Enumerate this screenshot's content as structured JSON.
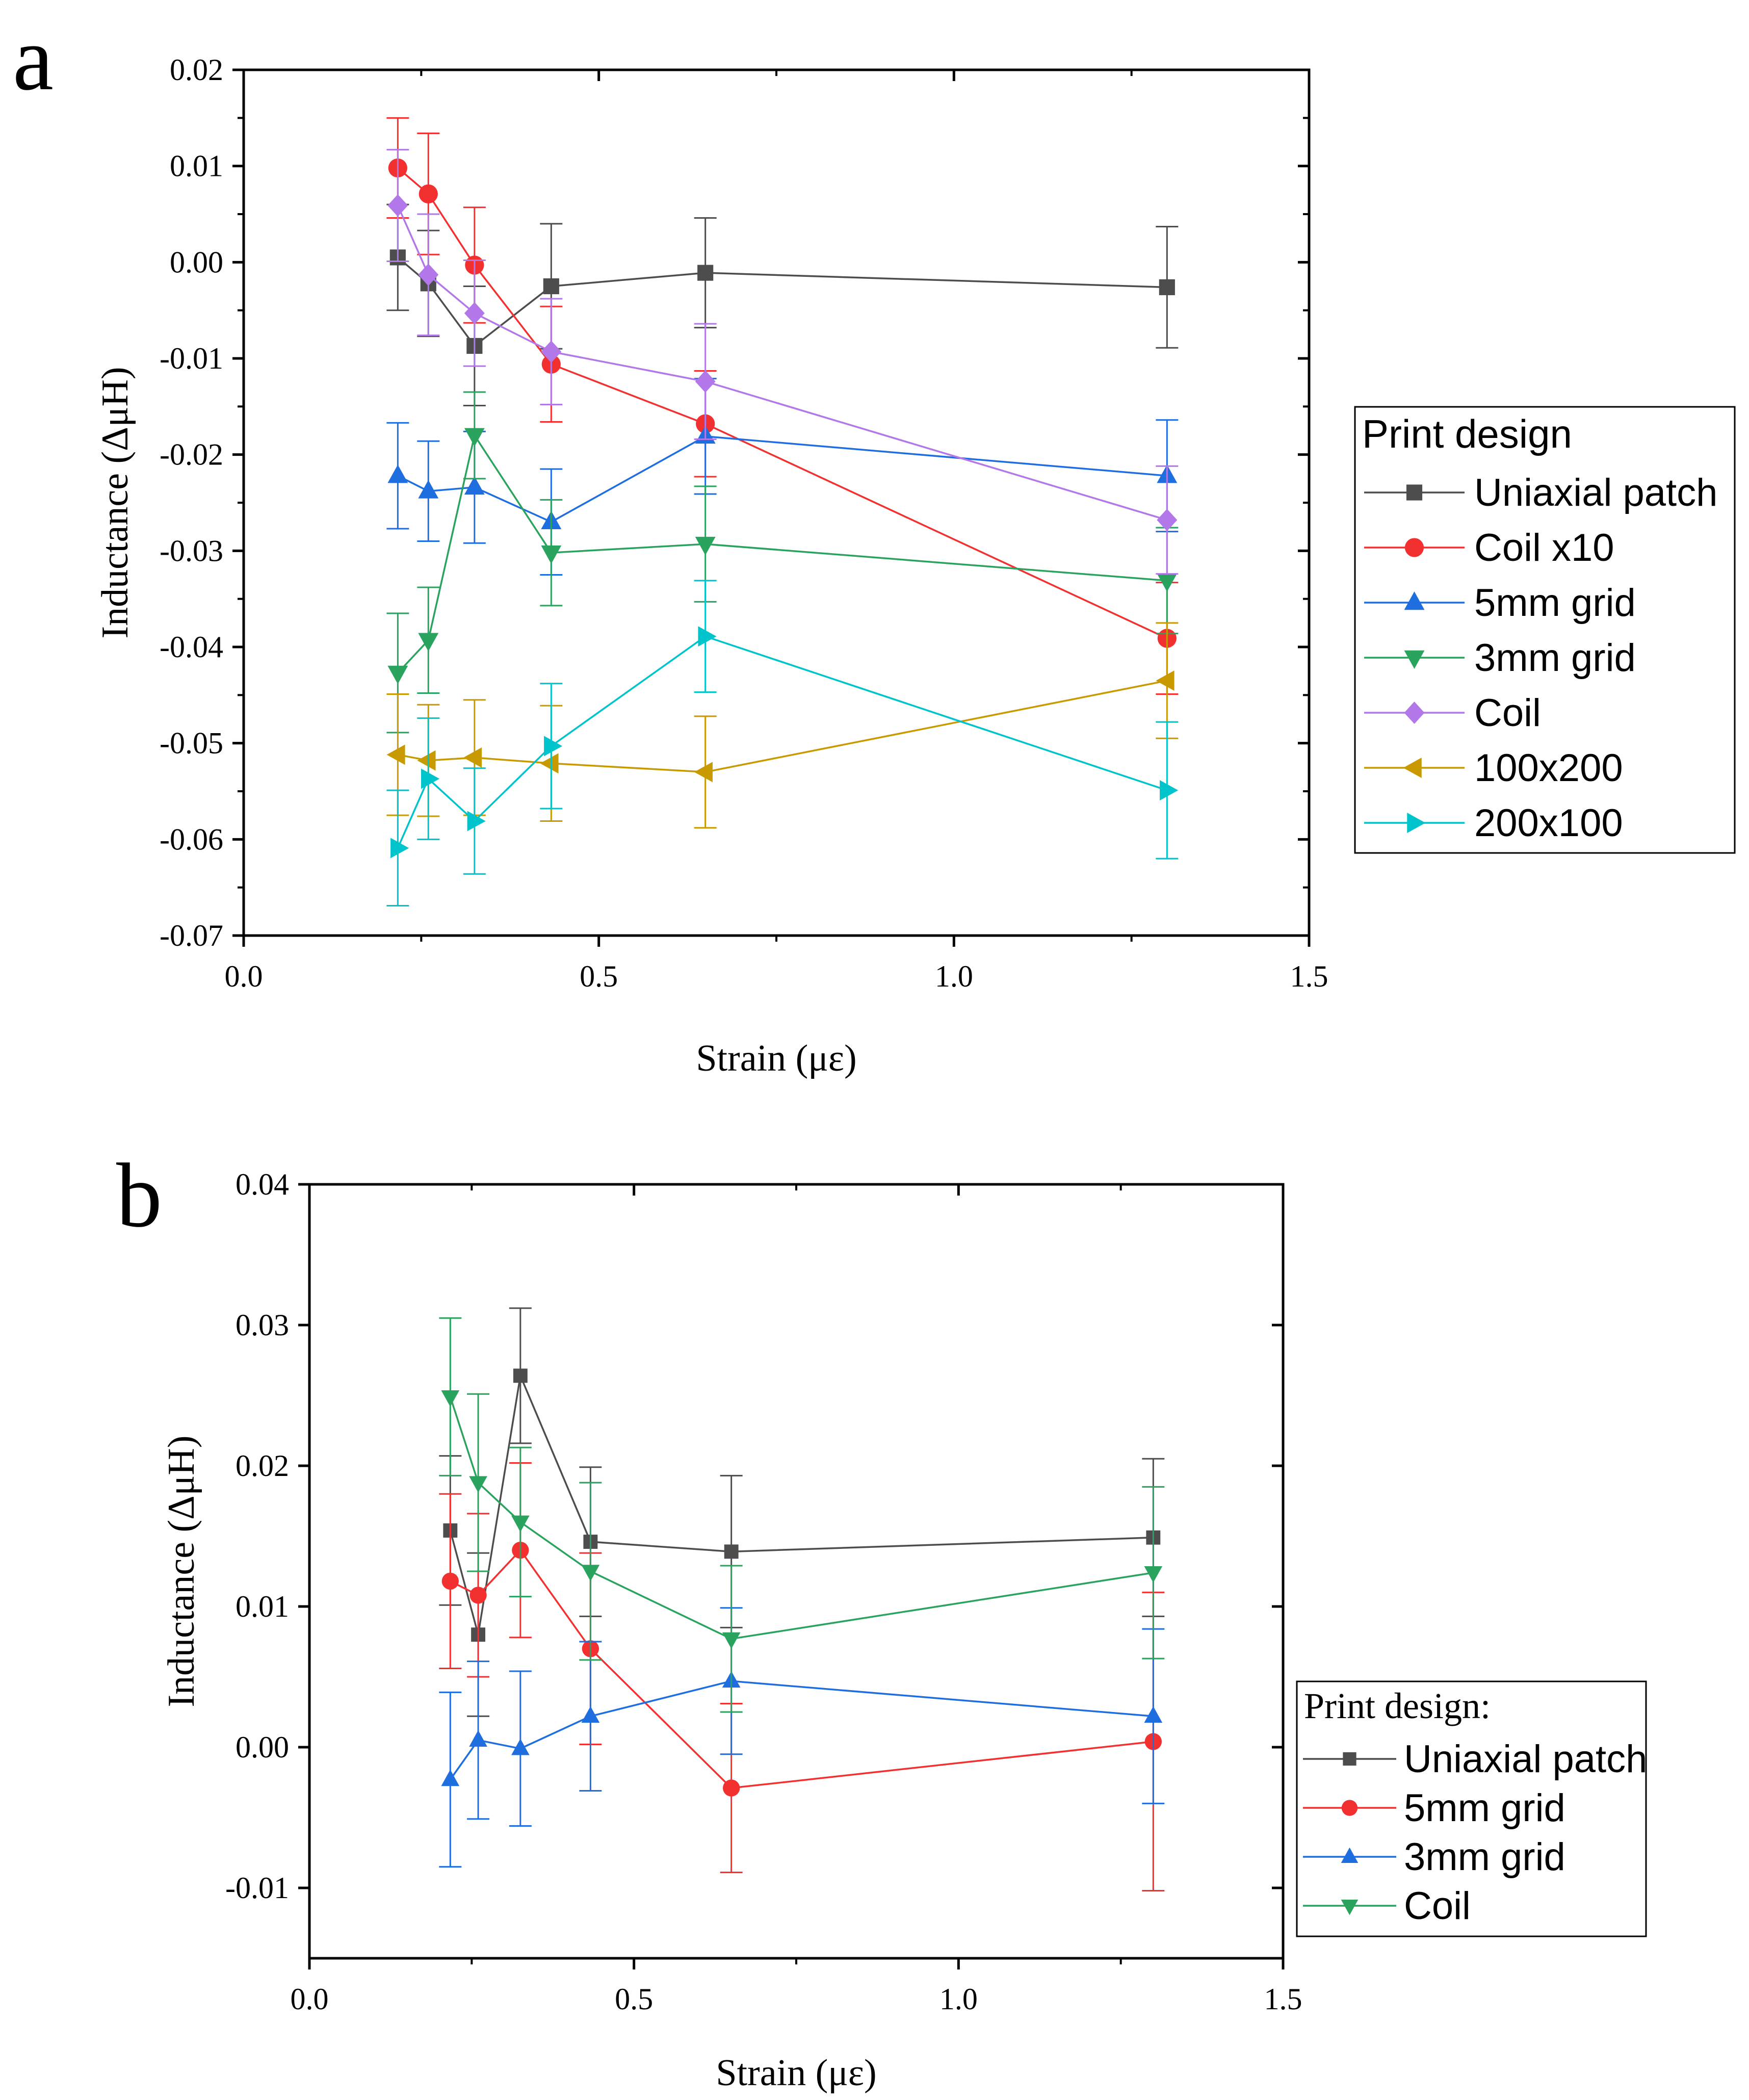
{
  "figure": {
    "panels": [
      "a",
      "b"
    ]
  },
  "chart_data": [
    {
      "type": "line",
      "panel_label": "a",
      "xlabel": "Strain (με)",
      "ylabel": "Inductance (ΔμH)",
      "xlim": [
        0.0,
        1.5
      ],
      "ylim": [
        -0.07,
        0.02
      ],
      "x_major_ticks": [
        0.0,
        0.5,
        1.0,
        1.5
      ],
      "x_tick_labels": [
        "0.0",
        "0.5",
        "1.0",
        "1.5"
      ],
      "y_major_ticks": [
        -0.07,
        -0.06,
        -0.05,
        -0.04,
        -0.03,
        -0.02,
        -0.01,
        0.0,
        0.01,
        0.02
      ],
      "y_tick_labels": [
        "-0.07",
        "-0.06",
        "-0.05",
        "-0.04",
        "-0.03",
        "-0.02",
        "-0.01",
        "0.00",
        "0.01",
        "0.02"
      ],
      "legend_title": "Print design",
      "legend_position": "right",
      "x": [
        0.217,
        0.26,
        0.325,
        0.433,
        0.65,
        1.3
      ],
      "series": [
        {
          "name": "Uniaxial patch",
          "color": "#4d4d4d",
          "marker": "square",
          "values": [
            0.0005,
            -0.0022,
            -0.0087,
            -0.0025,
            -0.0011,
            -0.0026
          ],
          "errors": [
            0.0055,
            0.0055,
            0.0062,
            0.0065,
            0.0057,
            0.0063
          ]
        },
        {
          "name": "Coil x10",
          "color": "#f23030",
          "marker": "circle",
          "values": [
            0.0098,
            0.0071,
            -0.0003,
            -0.0106,
            -0.0168,
            -0.0391
          ],
          "errors": [
            0.0052,
            0.0063,
            0.006,
            0.006,
            0.0055,
            0.0058
          ]
        },
        {
          "name": "5mm grid",
          "color": "#1f6ee0",
          "marker": "triangle-up",
          "values": [
            -0.0222,
            -0.0238,
            -0.0234,
            -0.027,
            -0.0181,
            -0.0222
          ],
          "errors": [
            0.0055,
            0.0052,
            0.0058,
            0.0055,
            0.006,
            0.0058
          ]
        },
        {
          "name": "3mm grid",
          "color": "#2aa35f",
          "marker": "triangle-down",
          "values": [
            -0.0427,
            -0.0393,
            -0.018,
            -0.0302,
            -0.0293,
            -0.0331
          ],
          "errors": [
            0.0062,
            0.0055,
            0.0045,
            0.0055,
            0.006,
            0.0055
          ]
        },
        {
          "name": "Coil",
          "color": "#b277e8",
          "marker": "diamond",
          "values": [
            0.0059,
            -0.0013,
            -0.0053,
            -0.0093,
            -0.0124,
            -0.0268
          ],
          "errors": [
            0.0058,
            0.0063,
            0.0055,
            0.0055,
            0.006,
            0.0056
          ]
        },
        {
          "name": "100x200",
          "color": "#c99a00",
          "marker": "triangle-left",
          "values": [
            -0.0512,
            -0.0518,
            -0.0515,
            -0.0521,
            -0.053,
            -0.0435
          ],
          "errors": [
            0.0063,
            0.0058,
            0.006,
            0.006,
            0.0058,
            0.006
          ]
        },
        {
          "name": "200x100",
          "color": "#00c4cc",
          "marker": "triangle-right",
          "values": [
            -0.0609,
            -0.0537,
            -0.0581,
            -0.0503,
            -0.0389,
            -0.0549
          ],
          "errors": [
            0.006,
            0.0063,
            0.0055,
            0.0065,
            0.0058,
            0.0071
          ]
        }
      ]
    },
    {
      "type": "line",
      "panel_label": "b",
      "xlabel": "Strain (με)",
      "ylabel": "Inductance (ΔμH)",
      "xlim": [
        0.0,
        1.5
      ],
      "ylim": [
        -0.015,
        0.04
      ],
      "x_major_ticks": [
        0.0,
        0.5,
        1.0,
        1.5
      ],
      "x_tick_labels": [
        "0.0",
        "0.5",
        "1.0",
        "1.5"
      ],
      "y_major_ticks": [
        -0.01,
        0.0,
        0.01,
        0.02,
        0.03,
        0.04
      ],
      "y_tick_labels": [
        "-0.01",
        "0.00",
        "0.01",
        "0.02",
        "0.03",
        "0.04"
      ],
      "legend_title": "Print design:",
      "legend_position": "right",
      "x": [
        0.217,
        0.26,
        0.325,
        0.433,
        0.65,
        1.3
      ],
      "series": [
        {
          "name": "Uniaxial patch",
          "color": "#4d4d4d",
          "marker": "square",
          "values": [
            0.0154,
            0.008,
            0.0264,
            0.0146,
            0.0139,
            0.0149
          ],
          "errors": [
            0.0053,
            0.0058,
            0.0048,
            0.0053,
            0.0054,
            0.0056
          ]
        },
        {
          "name": "5mm grid",
          "color": "#f23030",
          "marker": "circle",
          "values": [
            0.0118,
            0.0108,
            0.014,
            0.007,
            -0.0029,
            0.0004
          ],
          "errors": [
            0.0062,
            0.0058,
            0.0062,
            0.0068,
            0.006,
            0.0106
          ]
        },
        {
          "name": "3mm grid",
          "color": "#1f6ee0",
          "marker": "triangle-up",
          "values": [
            -0.0023,
            0.0005,
            -0.0001,
            0.0022,
            0.0047,
            0.0022
          ],
          "errors": [
            0.0062,
            0.0056,
            0.0055,
            0.0053,
            0.0052,
            0.0062
          ]
        },
        {
          "name": "Coil",
          "color": "#2aa35f",
          "marker": "triangle-down",
          "values": [
            0.0249,
            0.0188,
            0.016,
            0.0125,
            0.0077,
            0.0124
          ],
          "errors": [
            0.0056,
            0.0063,
            0.0053,
            0.0063,
            0.0052,
            0.0061
          ]
        }
      ]
    }
  ]
}
